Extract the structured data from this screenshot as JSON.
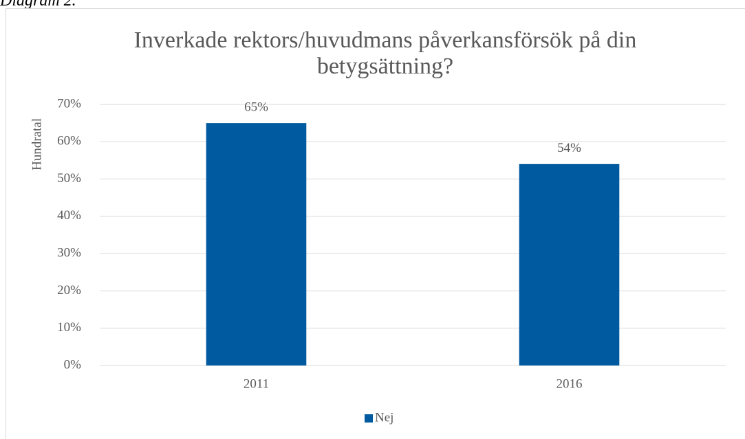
{
  "caption": "Diagram 2.",
  "chart_data": {
    "type": "bar",
    "title": "Inverkade rektors/huvudmans påverkansförsök på din betygsättning?",
    "ylabel": "Hundratal",
    "categories": [
      "2011",
      "2016"
    ],
    "series": [
      {
        "name": "Nej",
        "color": "#005aa0",
        "values": [
          65,
          54
        ],
        "value_labels": [
          "65%",
          "54%"
        ]
      }
    ],
    "ylim": [
      0,
      70
    ],
    "yticks": [
      {
        "value": 0,
        "label": "0%"
      },
      {
        "value": 10,
        "label": "10%"
      },
      {
        "value": 20,
        "label": "20%"
      },
      {
        "value": 30,
        "label": "30%"
      },
      {
        "value": 40,
        "label": "40%"
      },
      {
        "value": 50,
        "label": "50%"
      },
      {
        "value": 60,
        "label": "60%"
      },
      {
        "value": 70,
        "label": "70%"
      }
    ],
    "grid": true,
    "legend": "bottom"
  }
}
